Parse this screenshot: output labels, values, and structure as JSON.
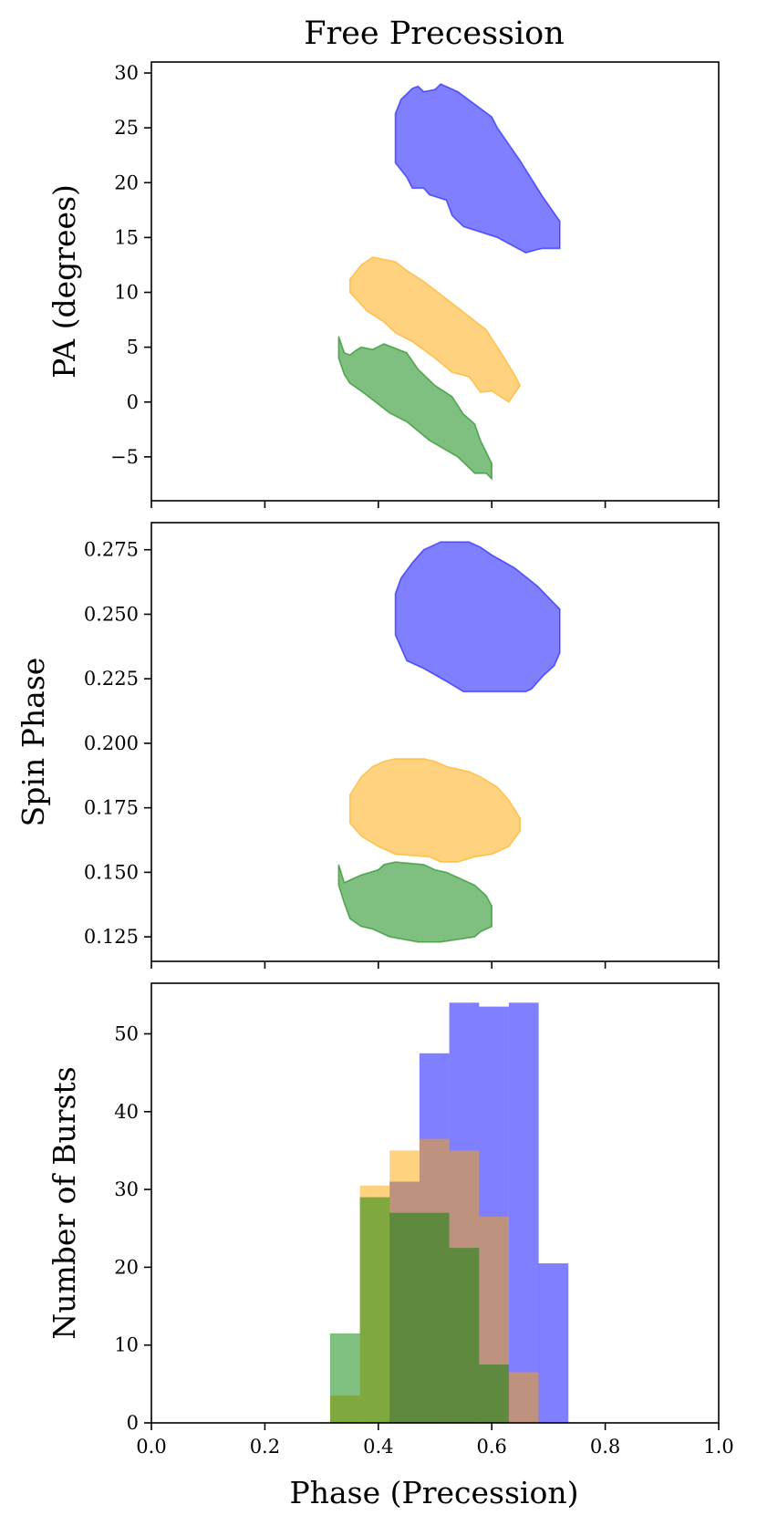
{
  "figure": {
    "title": "Free Precession",
    "xlabel": "Phase (Precession)",
    "x_ticks": [
      0.0,
      0.2,
      0.4,
      0.6,
      0.8,
      1.0
    ],
    "x_tick_labels": [
      "0.0",
      "0.2",
      "0.4",
      "0.6",
      "0.8",
      "1.0"
    ],
    "xlim": [
      0.0,
      1.0
    ]
  },
  "colors": {
    "blue": "#0000ff",
    "orange": "#ffa500",
    "green": "#008000"
  },
  "chart_data": [
    {
      "type": "area",
      "name": "pa-panel",
      "ylabel": "PA (degrees)",
      "xlim": [
        0.0,
        1.0
      ],
      "ylim": [
        -9.0,
        31.0
      ],
      "y_ticks": [
        -5,
        0,
        5,
        10,
        15,
        20,
        25,
        30
      ],
      "y_tick_labels": [
        "−5",
        "0",
        "5",
        "10",
        "15",
        "20",
        "25",
        "30"
      ],
      "regions": [
        {
          "color": "blue",
          "points": [
            [
              0.43,
              26.3
            ],
            [
              0.44,
              27.6
            ],
            [
              0.46,
              28.6
            ],
            [
              0.47,
              28.8
            ],
            [
              0.48,
              28.3
            ],
            [
              0.5,
              28.5
            ],
            [
              0.51,
              29.0
            ],
            [
              0.54,
              28.3
            ],
            [
              0.6,
              26.0
            ],
            [
              0.61,
              25.0
            ],
            [
              0.65,
              22.0
            ],
            [
              0.69,
              18.7
            ],
            [
              0.72,
              16.5
            ],
            [
              0.72,
              14.0
            ],
            [
              0.69,
              14.0
            ],
            [
              0.68,
              13.9
            ],
            [
              0.66,
              13.6
            ],
            [
              0.61,
              15.0
            ],
            [
              0.55,
              16.0
            ],
            [
              0.53,
              17.0
            ],
            [
              0.52,
              18.4
            ],
            [
              0.49,
              18.9
            ],
            [
              0.48,
              19.5
            ],
            [
              0.46,
              19.5
            ],
            [
              0.45,
              20.5
            ],
            [
              0.43,
              21.8
            ],
            [
              0.43,
              23.0
            ]
          ]
        },
        {
          "color": "orange",
          "points": [
            [
              0.35,
              11.2
            ],
            [
              0.37,
              12.5
            ],
            [
              0.39,
              13.2
            ],
            [
              0.41,
              13.0
            ],
            [
              0.43,
              12.8
            ],
            [
              0.45,
              12.0
            ],
            [
              0.48,
              11.0
            ],
            [
              0.53,
              9.0
            ],
            [
              0.59,
              6.6
            ],
            [
              0.62,
              4.2
            ],
            [
              0.64,
              2.5
            ],
            [
              0.65,
              1.5
            ],
            [
              0.63,
              0.0
            ],
            [
              0.6,
              1.0
            ],
            [
              0.58,
              0.9
            ],
            [
              0.56,
              2.3
            ],
            [
              0.53,
              2.7
            ],
            [
              0.5,
              4.0
            ],
            [
              0.46,
              5.5
            ],
            [
              0.43,
              6.3
            ],
            [
              0.41,
              7.3
            ],
            [
              0.38,
              8.3
            ],
            [
              0.35,
              10.0
            ]
          ]
        },
        {
          "color": "green",
          "points": [
            [
              0.33,
              6.0
            ],
            [
              0.34,
              4.5
            ],
            [
              0.35,
              4.3
            ],
            [
              0.36,
              4.7
            ],
            [
              0.37,
              5.0
            ],
            [
              0.39,
              4.8
            ],
            [
              0.41,
              5.3
            ],
            [
              0.45,
              4.5
            ],
            [
              0.47,
              3.0
            ],
            [
              0.5,
              1.5
            ],
            [
              0.53,
              0.5
            ],
            [
              0.55,
              -1.1
            ],
            [
              0.57,
              -2.0
            ],
            [
              0.58,
              -3.5
            ],
            [
              0.6,
              -5.6
            ],
            [
              0.6,
              -7.0
            ],
            [
              0.59,
              -6.5
            ],
            [
              0.57,
              -6.5
            ],
            [
              0.54,
              -5.0
            ],
            [
              0.49,
              -3.5
            ],
            [
              0.45,
              -1.8
            ],
            [
              0.42,
              -1.0
            ],
            [
              0.39,
              0.2
            ],
            [
              0.37,
              1.0
            ],
            [
              0.35,
              1.7
            ],
            [
              0.34,
              2.5
            ],
            [
              0.33,
              4.0
            ]
          ]
        }
      ]
    },
    {
      "type": "area",
      "name": "spin-phase-panel",
      "ylabel": "Spin Phase",
      "xlim": [
        0.0,
        1.0
      ],
      "ylim": [
        0.1155,
        0.2855
      ],
      "y_ticks": [
        0.125,
        0.15,
        0.175,
        0.2,
        0.225,
        0.25,
        0.275
      ],
      "y_tick_labels": [
        "0.125",
        "0.150",
        "0.175",
        "0.200",
        "0.225",
        "0.250",
        "0.275"
      ],
      "regions": [
        {
          "color": "blue",
          "points": [
            [
              0.43,
              0.258
            ],
            [
              0.44,
              0.264
            ],
            [
              0.46,
              0.27
            ],
            [
              0.48,
              0.275
            ],
            [
              0.51,
              0.278
            ],
            [
              0.56,
              0.278
            ],
            [
              0.58,
              0.276
            ],
            [
              0.6,
              0.273
            ],
            [
              0.64,
              0.268
            ],
            [
              0.68,
              0.261
            ],
            [
              0.72,
              0.252
            ],
            [
              0.72,
              0.235
            ],
            [
              0.71,
              0.23
            ],
            [
              0.69,
              0.226
            ],
            [
              0.67,
              0.221
            ],
            [
              0.66,
              0.22
            ],
            [
              0.55,
              0.22
            ],
            [
              0.52,
              0.224
            ],
            [
              0.48,
              0.229
            ],
            [
              0.45,
              0.232
            ],
            [
              0.43,
              0.242
            ]
          ]
        },
        {
          "color": "orange",
          "points": [
            [
              0.35,
              0.18
            ],
            [
              0.37,
              0.187
            ],
            [
              0.39,
              0.191
            ],
            [
              0.41,
              0.193
            ],
            [
              0.43,
              0.194
            ],
            [
              0.48,
              0.194
            ],
            [
              0.5,
              0.193
            ],
            [
              0.52,
              0.191
            ],
            [
              0.56,
              0.189
            ],
            [
              0.58,
              0.187
            ],
            [
              0.61,
              0.183
            ],
            [
              0.63,
              0.178
            ],
            [
              0.65,
              0.171
            ],
            [
              0.65,
              0.166
            ],
            [
              0.63,
              0.16
            ],
            [
              0.6,
              0.157
            ],
            [
              0.57,
              0.156
            ],
            [
              0.54,
              0.154
            ],
            [
              0.51,
              0.154
            ],
            [
              0.49,
              0.156
            ],
            [
              0.43,
              0.157
            ],
            [
              0.4,
              0.16
            ],
            [
              0.37,
              0.164
            ],
            [
              0.35,
              0.169
            ]
          ]
        },
        {
          "color": "green",
          "points": [
            [
              0.33,
              0.153
            ],
            [
              0.34,
              0.146
            ],
            [
              0.35,
              0.147
            ],
            [
              0.37,
              0.149
            ],
            [
              0.4,
              0.151
            ],
            [
              0.41,
              0.153
            ],
            [
              0.43,
              0.154
            ],
            [
              0.48,
              0.153
            ],
            [
              0.5,
              0.151
            ],
            [
              0.52,
              0.15
            ],
            [
              0.54,
              0.148
            ],
            [
              0.57,
              0.145
            ],
            [
              0.59,
              0.141
            ],
            [
              0.6,
              0.137
            ],
            [
              0.6,
              0.129
            ],
            [
              0.58,
              0.127
            ],
            [
              0.57,
              0.125
            ],
            [
              0.54,
              0.124
            ],
            [
              0.51,
              0.123
            ],
            [
              0.47,
              0.123
            ],
            [
              0.42,
              0.125
            ],
            [
              0.39,
              0.128
            ],
            [
              0.37,
              0.129
            ],
            [
              0.35,
              0.132
            ],
            [
              0.34,
              0.138
            ],
            [
              0.33,
              0.145
            ]
          ]
        }
      ]
    },
    {
      "type": "bar",
      "name": "histogram-panel",
      "ylabel": "Number of Bursts",
      "xlim": [
        0.0,
        1.0
      ],
      "ylim": [
        0,
        56.5
      ],
      "y_ticks": [
        0,
        10,
        20,
        30,
        40,
        50
      ],
      "y_tick_labels": [
        "0",
        "10",
        "20",
        "30",
        "40",
        "50"
      ],
      "bin_width": 0.0525,
      "series": [
        {
          "color": "blue",
          "bin_starts": [
            0.42,
            0.4725,
            0.525,
            0.5775,
            0.63,
            0.6825
          ],
          "values": [
            31,
            47.5,
            54,
            53.5,
            54,
            20.5
          ]
        },
        {
          "color": "orange",
          "bin_starts": [
            0.315,
            0.3675,
            0.42,
            0.4725,
            0.525,
            0.5775,
            0.63
          ],
          "values": [
            3.5,
            30.5,
            35,
            36.5,
            35,
            26.5,
            6.5
          ]
        },
        {
          "color": "green",
          "bin_starts": [
            0.315,
            0.3675,
            0.42,
            0.4725,
            0.525,
            0.5775
          ],
          "values": [
            11.5,
            29,
            27,
            27,
            22.5,
            7.5
          ]
        }
      ]
    }
  ]
}
